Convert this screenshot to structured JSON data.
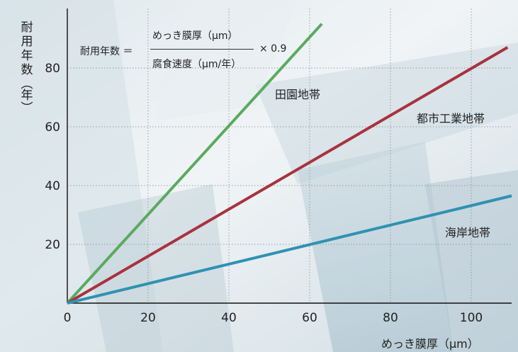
{
  "chart_data": {
    "type": "line",
    "y_axis_label": [
      "耐",
      "用",
      "年",
      "数",
      "︵",
      "年",
      "︶"
    ],
    "xlabel": "めっき膜厚（μm）",
    "xlim": [
      0,
      110
    ],
    "ylim": [
      0,
      100
    ],
    "x_ticks": [
      0,
      20,
      40,
      60,
      80,
      100
    ],
    "y_ticks": [
      20,
      40,
      60,
      80
    ],
    "grid": true,
    "formula": {
      "lhs": "耐用年数 ＝",
      "numerator": "めっき膜厚（μm）",
      "denominator": "腐食速度（μm/年）",
      "multiplier": "× 0.9"
    },
    "series": [
      {
        "name": "田園地帯",
        "color": "#5aaa5e",
        "x": [
          0,
          63
        ],
        "y": [
          0,
          95
        ]
      },
      {
        "name": "都市工業地帯",
        "color": "#a8323e",
        "x": [
          0,
          109
        ],
        "y": [
          0,
          87
        ]
      },
      {
        "name": "海岸地帯",
        "color": "#2f92b1",
        "x": [
          0,
          110
        ],
        "y": [
          0,
          36.5
        ]
      }
    ]
  }
}
